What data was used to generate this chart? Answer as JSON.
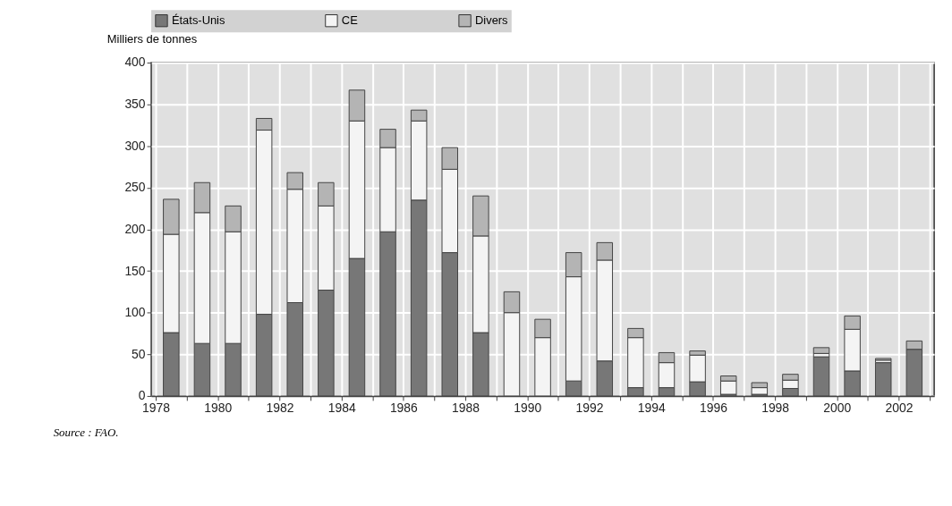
{
  "chart_data": {
    "type": "bar",
    "stacked": true,
    "ylabel": "Milliers de tonnes",
    "x": [
      1978.5,
      1979.5,
      1980.5,
      1981.5,
      1982.5,
      1983.5,
      1984.5,
      1985.5,
      1986.5,
      1987.5,
      1988.5,
      1989.5,
      1990.5,
      1991.5,
      1992.5,
      1993.5,
      1994.5,
      1995.5,
      1996.5,
      1997.5,
      1998.5,
      1999.5,
      2000.5,
      2001.5,
      2002.5
    ],
    "series": [
      {
        "name": "États-Unis",
        "color": "#777777",
        "values": [
          76,
          63,
          63,
          98,
          112,
          127,
          165,
          197,
          235,
          172,
          76,
          null,
          null,
          18,
          42,
          10,
          10,
          17,
          2,
          2,
          9,
          47,
          30,
          40,
          56
        ]
      },
      {
        "name": "CE",
        "color": "#f4f4f4",
        "values": [
          118,
          157,
          134,
          221,
          136,
          101,
          165,
          101,
          95,
          100,
          116,
          100,
          70,
          125,
          121,
          60,
          30,
          32,
          16,
          8,
          10,
          4,
          50,
          3,
          null
        ]
      },
      {
        "name": "Divers",
        "color": "#b4b4b4",
        "values": [
          42,
          36,
          31,
          14,
          20,
          28,
          37,
          22,
          13,
          26,
          48,
          25,
          22,
          29,
          21,
          11,
          12,
          5,
          6,
          6,
          7,
          7,
          16,
          2,
          10
        ]
      }
    ],
    "xlim": [
      1978,
      2003
    ],
    "xticks": [
      1978,
      {
        "value": 1979,
        "label": null
      },
      1980,
      {
        "value": 1981,
        "label": null
      },
      1982,
      {
        "value": 1983,
        "label": null
      },
      1984,
      {
        "value": 1985,
        "label": null
      },
      1986,
      {
        "value": 1987,
        "label": null
      },
      1988,
      {
        "value": 1989,
        "label": null
      },
      1990,
      {
        "value": 1991,
        "label": null
      },
      1992,
      {
        "value": 1993,
        "label": null
      },
      1994,
      {
        "value": 1995,
        "label": null
      },
      1996,
      {
        "value": 1997,
        "label": null
      },
      1998,
      {
        "value": 1999,
        "label": null
      },
      2000,
      {
        "value": 2001,
        "label": null
      },
      2002,
      {
        "value": 2003,
        "label": null
      }
    ],
    "ylim": [
      0,
      400
    ],
    "yticks": [
      0,
      50,
      100,
      150,
      200,
      250,
      300,
      350,
      400
    ],
    "grid": true,
    "legend": "top",
    "annotations": [
      "Source : FAO."
    ]
  }
}
